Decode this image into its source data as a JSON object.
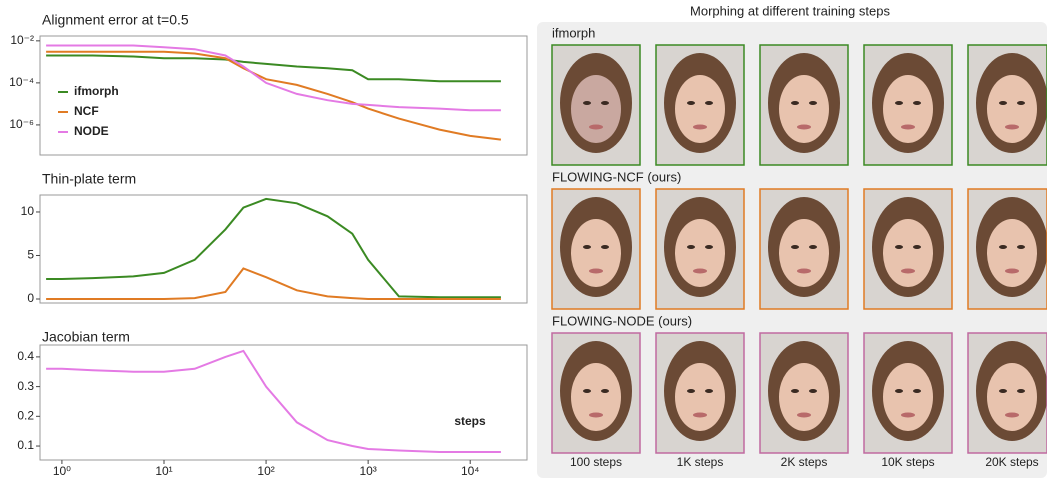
{
  "chart_data": [
    {
      "type": "line",
      "title": "Alignment error at t=0.5",
      "log_x": true,
      "log_y": true,
      "x": [
        0.7,
        1,
        2,
        5,
        10,
        20,
        40,
        60,
        100,
        200,
        400,
        700,
        1000,
        2000,
        5000,
        10000,
        20000
      ],
      "xlim": [
        0.61,
        36000
      ],
      "ylim": [
        3.7e-08,
        0.017
      ],
      "yticks": [
        {
          "value": 1e-06,
          "label": "10⁻⁶"
        },
        {
          "value": 0.0001,
          "label": "10⁻⁴"
        },
        {
          "value": 0.01,
          "label": "10⁻²"
        }
      ],
      "legend": "center left",
      "series": [
        {
          "name": "ifmorph",
          "color": "#3b8a23",
          "values": [
            0.002,
            0.002,
            0.002,
            0.0018,
            0.0015,
            0.0015,
            0.0013,
            0.001,
            0.0008,
            0.0006,
            0.0005,
            0.0004,
            0.00015,
            0.00015,
            0.00012,
            0.00012,
            0.00012
          ]
        },
        {
          "name": "NCF",
          "color": "#e07b24",
          "values": [
            0.003,
            0.003,
            0.003,
            0.003,
            0.003,
            0.0025,
            0.0015,
            0.0005,
            0.00015,
            8e-05,
            3e-05,
            1.2e-05,
            6e-06,
            2e-06,
            6e-07,
            3e-07,
            2e-07
          ]
        },
        {
          "name": "NODE",
          "color": "#e47ae4",
          "values": [
            0.006,
            0.006,
            0.006,
            0.006,
            0.005,
            0.004,
            0.002,
            0.0006,
            0.0001,
            3e-05,
            1.5e-05,
            1e-05,
            9e-06,
            7e-06,
            6e-06,
            5e-06,
            5e-06
          ]
        }
      ]
    },
    {
      "type": "line",
      "title": "Thin-plate term",
      "log_x": true,
      "x": [
        0.7,
        1,
        2,
        5,
        10,
        20,
        40,
        60,
        100,
        200,
        400,
        700,
        1000,
        2000,
        5000,
        10000,
        20000
      ],
      "xlim": [
        0.61,
        36000
      ],
      "ylim": [
        -0.46,
        11.95
      ],
      "yticks": [
        0,
        5,
        10
      ],
      "series": [
        {
          "name": "ifmorph",
          "color": "#3b8a23",
          "values": [
            2.3,
            2.3,
            2.4,
            2.6,
            3,
            4.5,
            8,
            10.5,
            11.5,
            11,
            9.5,
            7.5,
            4.5,
            0.3,
            0.2,
            0.2,
            0.2
          ]
        },
        {
          "name": "NCF",
          "color": "#e07b24",
          "values": [
            0,
            0,
            0,
            0,
            0,
            0.1,
            0.8,
            3.5,
            2.5,
            1,
            0.3,
            0.1,
            0,
            0,
            0,
            0,
            0
          ]
        }
      ]
    },
    {
      "type": "line",
      "title": "Jacobian term",
      "log_x": true,
      "annotation": "steps",
      "x": [
        0.7,
        1,
        2,
        5,
        10,
        20,
        40,
        60,
        100,
        200,
        400,
        700,
        1000,
        2000,
        5000,
        10000,
        20000
      ],
      "xlim": [
        0.61,
        36000
      ],
      "ylim": [
        0.053,
        0.44
      ],
      "xticks": [
        {
          "value": 1,
          "label": "10⁰"
        },
        {
          "value": 10,
          "label": "10¹"
        },
        {
          "value": 100,
          "label": "10²"
        },
        {
          "value": 1000,
          "label": "10³"
        },
        {
          "value": 10000,
          "label": "10⁴"
        }
      ],
      "yticks": [
        0.1,
        0.2,
        0.3,
        0.4
      ],
      "series": [
        {
          "name": "NODE",
          "color": "#e47ae4",
          "values": [
            0.36,
            0.36,
            0.355,
            0.35,
            0.35,
            0.36,
            0.4,
            0.42,
            0.3,
            0.18,
            0.12,
            0.1,
            0.09,
            0.085,
            0.08,
            0.08,
            0.08
          ]
        }
      ]
    }
  ],
  "image_grid": {
    "title": "Morphing at different training steps",
    "rows": [
      "ifmorph",
      "FLOWING-NCF (ours)",
      "FLOWING-NODE (ours)"
    ],
    "columns": [
      "100 steps",
      "1K steps",
      "2K steps",
      "10K steps",
      "20K steps"
    ]
  }
}
